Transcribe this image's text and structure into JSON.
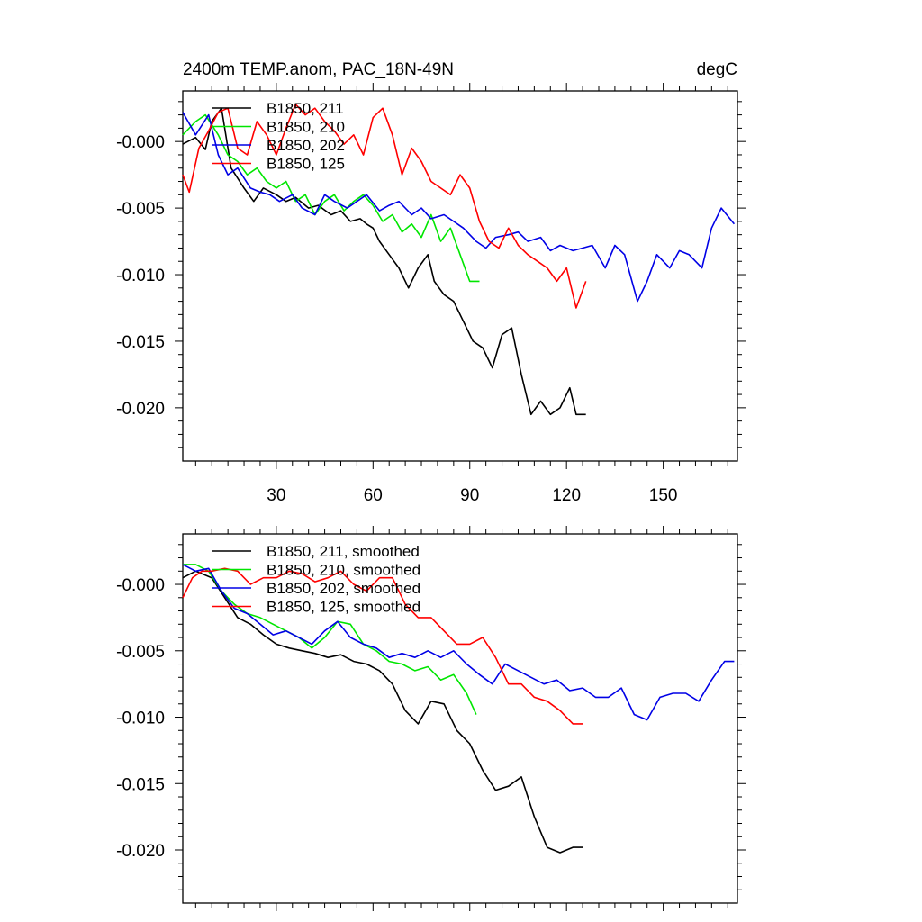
{
  "title": "2400m TEMP.anom, PAC_18N-49N",
  "units": "degC",
  "colors": {
    "211": "#000000",
    "210": "#00e600",
    "202": "#0000e6",
    "125": "#ff0000"
  },
  "chart_data": [
    {
      "type": "line",
      "panel": "raw",
      "xlim": [
        1,
        173
      ],
      "ylim": [
        -0.024,
        0.0038
      ],
      "xticks": [
        30,
        60,
        90,
        120,
        150
      ],
      "xtick_labels": [
        "30",
        "60",
        "90",
        "120",
        "150"
      ],
      "yticks": [
        0.0,
        -0.005,
        -0.01,
        -0.015,
        -0.02
      ],
      "ytick_labels": [
        "-0.000",
        "-0.005",
        "-0.010",
        "-0.015",
        "-0.020"
      ],
      "legend": [
        "B1850, 211",
        "B1850, 210",
        "B1850, 202",
        "B1850, 125"
      ],
      "legend_position": "top-left",
      "series": [
        {
          "name": "B1850, 211",
          "color": "#000000",
          "x": [
            1,
            5,
            8,
            10,
            13,
            16,
            20,
            23,
            26,
            30,
            33,
            36,
            40,
            43,
            47,
            50,
            53,
            56,
            58,
            60,
            62,
            65,
            68,
            71,
            74,
            77,
            79,
            82,
            85,
            88,
            91,
            94,
            97,
            100,
            103,
            106,
            109,
            112,
            115,
            118,
            121,
            123,
            126
          ],
          "y": [
            -0.0002,
            0.0003,
            -0.0006,
            0.0015,
            0.0025,
            -0.002,
            -0.0035,
            -0.0045,
            -0.0035,
            -0.004,
            -0.0045,
            -0.0042,
            -0.005,
            -0.0048,
            -0.0055,
            -0.0052,
            -0.006,
            -0.0058,
            -0.0062,
            -0.0065,
            -0.0075,
            -0.0085,
            -0.0095,
            -0.011,
            -0.0095,
            -0.0085,
            -0.0105,
            -0.0115,
            -0.012,
            -0.0135,
            -0.015,
            -0.0155,
            -0.017,
            -0.0145,
            -0.014,
            -0.0175,
            -0.0205,
            -0.0195,
            -0.0205,
            -0.02,
            -0.0185,
            -0.0205,
            -0.0205
          ]
        },
        {
          "name": "B1850, 210",
          "color": "#00e600",
          "x": [
            1,
            5,
            8,
            12,
            15,
            18,
            21,
            24,
            27,
            30,
            33,
            36,
            39,
            42,
            45,
            48,
            51,
            54,
            57,
            60,
            63,
            66,
            69,
            72,
            75,
            78,
            81,
            84,
            87,
            90,
            93
          ],
          "y": [
            0.0005,
            0.0015,
            0.002,
            0.0005,
            -0.001,
            -0.0015,
            -0.0025,
            -0.002,
            -0.003,
            -0.0035,
            -0.003,
            -0.0045,
            -0.004,
            -0.0055,
            -0.0045,
            -0.004,
            -0.0052,
            -0.0045,
            -0.004,
            -0.0048,
            -0.006,
            -0.0055,
            -0.0068,
            -0.0062,
            -0.0072,
            -0.0055,
            -0.0075,
            -0.0065,
            -0.0085,
            -0.0105,
            -0.0105
          ]
        },
        {
          "name": "B1850, 202",
          "color": "#0000e6",
          "x": [
            1,
            5,
            9,
            12,
            15,
            18,
            22,
            25,
            28,
            31,
            35,
            38,
            42,
            45,
            48,
            52,
            55,
            58,
            62,
            65,
            68,
            72,
            75,
            78,
            82,
            85,
            88,
            92,
            95,
            98,
            102,
            105,
            108,
            112,
            115,
            118,
            122,
            125,
            128,
            132,
            135,
            138,
            142,
            145,
            148,
            152,
            155,
            158,
            162,
            165,
            168,
            172
          ],
          "y": [
            0.0022,
            0.0005,
            0.002,
            -0.001,
            -0.0025,
            -0.002,
            -0.0035,
            -0.0038,
            -0.004,
            -0.0045,
            -0.004,
            -0.005,
            -0.0055,
            -0.004,
            -0.0045,
            -0.005,
            -0.0045,
            -0.004,
            -0.0052,
            -0.0048,
            -0.0045,
            -0.0055,
            -0.005,
            -0.0058,
            -0.0055,
            -0.006,
            -0.0065,
            -0.0075,
            -0.008,
            -0.0072,
            -0.007,
            -0.0068,
            -0.0075,
            -0.0072,
            -0.0082,
            -0.0078,
            -0.0082,
            -0.008,
            -0.0078,
            -0.0095,
            -0.0078,
            -0.0085,
            -0.012,
            -0.0105,
            -0.0085,
            -0.0095,
            -0.0082,
            -0.0085,
            -0.0095,
            -0.0065,
            -0.005,
            -0.0062
          ]
        },
        {
          "name": "B1850, 125",
          "color": "#ff0000",
          "x": [
            1,
            3,
            6,
            9,
            12,
            15,
            18,
            21,
            24,
            27,
            30,
            33,
            36,
            39,
            42,
            45,
            48,
            51,
            54,
            57,
            60,
            63,
            66,
            69,
            72,
            75,
            78,
            81,
            84,
            87,
            90,
            93,
            96,
            99,
            102,
            105,
            108,
            111,
            114,
            117,
            120,
            123,
            126
          ],
          "y": [
            -0.0025,
            -0.0038,
            -0.0005,
            0.0008,
            0.0022,
            0.0025,
            -0.0005,
            -0.001,
            0.0015,
            0.0005,
            -0.001,
            0.001,
            0.0028,
            0.002,
            0.0025,
            0.0015,
            0.0008,
            -0.0002,
            0.0005,
            -0.001,
            0.0018,
            0.0025,
            0.0005,
            -0.0025,
            -0.0005,
            -0.0015,
            -0.003,
            -0.0035,
            -0.004,
            -0.0025,
            -0.0035,
            -0.006,
            -0.0075,
            -0.008,
            -0.0065,
            -0.0078,
            -0.0085,
            -0.009,
            -0.0095,
            -0.0105,
            -0.0095,
            -0.0125,
            -0.0105
          ]
        }
      ]
    },
    {
      "type": "line",
      "panel": "smoothed",
      "xlim": [
        1,
        173
      ],
      "ylim": [
        -0.024,
        0.0038
      ],
      "xticks": [
        30,
        60,
        90,
        120,
        150
      ],
      "xtick_labels": [],
      "yticks": [
        0.0,
        -0.005,
        -0.01,
        -0.015,
        -0.02
      ],
      "ytick_labels": [
        "-0.000",
        "-0.005",
        "-0.010",
        "-0.015",
        "-0.020"
      ],
      "legend": [
        "B1850, 211, smoothed",
        "B1850, 210, smoothed",
        "B1850, 202, smoothed",
        "B1850, 125, smoothed"
      ],
      "legend_position": "top-left",
      "series": [
        {
          "name": "B1850, 211, smoothed",
          "color": "#000000",
          "x": [
            1,
            5,
            10,
            14,
            18,
            22,
            26,
            30,
            34,
            38,
            42,
            46,
            50,
            54,
            58,
            62,
            66,
            70,
            74,
            78,
            82,
            86,
            90,
            94,
            98,
            102,
            106,
            110,
            114,
            118,
            122,
            125
          ],
          "y": [
            0.0005,
            0.001,
            0.0005,
            -0.001,
            -0.0025,
            -0.003,
            -0.0038,
            -0.0045,
            -0.0048,
            -0.005,
            -0.0052,
            -0.0055,
            -0.0053,
            -0.0058,
            -0.006,
            -0.0065,
            -0.0075,
            -0.0095,
            -0.0105,
            -0.0088,
            -0.009,
            -0.011,
            -0.012,
            -0.014,
            -0.0155,
            -0.0152,
            -0.0145,
            -0.0175,
            -0.0198,
            -0.0202,
            -0.0198,
            -0.0198
          ]
        },
        {
          "name": "B1850, 210, smoothed",
          "color": "#00e600",
          "x": [
            1,
            5,
            9,
            13,
            17,
            21,
            25,
            29,
            33,
            37,
            41,
            45,
            49,
            53,
            57,
            61,
            65,
            69,
            73,
            77,
            81,
            85,
            89,
            92
          ],
          "y": [
            0.0015,
            0.0015,
            0.001,
            -0.0005,
            -0.0015,
            -0.0022,
            -0.0025,
            -0.003,
            -0.0035,
            -0.004,
            -0.0048,
            -0.004,
            -0.0028,
            -0.003,
            -0.0045,
            -0.005,
            -0.0058,
            -0.006,
            -0.0065,
            -0.0062,
            -0.0072,
            -0.0068,
            -0.0082,
            -0.0098
          ]
        },
        {
          "name": "B1850, 202",
          "color": "#0000e6",
          "x": [
            1,
            5,
            9,
            13,
            17,
            21,
            25,
            29,
            33,
            37,
            41,
            45,
            49,
            53,
            57,
            61,
            65,
            69,
            73,
            77,
            81,
            85,
            89,
            93,
            97,
            101,
            105,
            109,
            113,
            117,
            121,
            125,
            129,
            133,
            137,
            141,
            145,
            149,
            153,
            157,
            161,
            165,
            169,
            172
          ],
          "y": [
            0.0015,
            0.001,
            0.0012,
            -0.0005,
            -0.0018,
            -0.0022,
            -0.003,
            -0.0038,
            -0.0035,
            -0.004,
            -0.0045,
            -0.0035,
            -0.0028,
            -0.004,
            -0.0045,
            -0.0048,
            -0.0055,
            -0.0052,
            -0.0055,
            -0.005,
            -0.0055,
            -0.005,
            -0.006,
            -0.0068,
            -0.0075,
            -0.006,
            -0.0065,
            -0.007,
            -0.0075,
            -0.0072,
            -0.008,
            -0.0078,
            -0.0085,
            -0.0085,
            -0.0078,
            -0.0098,
            -0.0102,
            -0.0085,
            -0.0082,
            -0.0082,
            -0.0088,
            -0.0072,
            -0.0058,
            -0.0058
          ]
        },
        {
          "name": "B1850, 125, smoothed",
          "color": "#ff0000",
          "x": [
            1,
            4,
            7,
            10,
            14,
            18,
            22,
            26,
            30,
            34,
            38,
            42,
            46,
            50,
            54,
            58,
            62,
            66,
            70,
            74,
            78,
            82,
            86,
            90,
            94,
            98,
            102,
            106,
            110,
            114,
            118,
            122,
            125
          ],
          "y": [
            -0.001,
            0.0005,
            0.001,
            0.001,
            0.0012,
            0.001,
            0.0,
            0.0005,
            0.0005,
            0.001,
            0.0008,
            0.0002,
            0.0005,
            0.001,
            0.0,
            -0.0005,
            0.0005,
            0.0005,
            -0.0015,
            -0.0025,
            -0.0025,
            -0.0035,
            -0.0045,
            -0.0045,
            -0.004,
            -0.0055,
            -0.0075,
            -0.0075,
            -0.0085,
            -0.0088,
            -0.0095,
            -0.0105,
            -0.0105
          ]
        }
      ]
    }
  ]
}
